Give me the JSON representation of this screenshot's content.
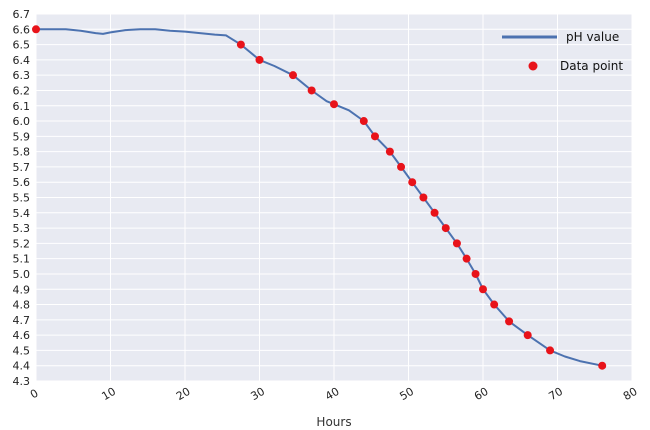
{
  "chart_data": {
    "type": "line",
    "title": "",
    "xlabel": "Hours",
    "ylabel": "",
    "xlim": [
      0,
      80
    ],
    "ylim": [
      4.3,
      6.7
    ],
    "xticks": [
      0,
      10,
      20,
      30,
      40,
      50,
      60,
      70,
      80
    ],
    "yticks": [
      4.3,
      4.4,
      4.5,
      4.6,
      4.7,
      4.8,
      4.9,
      5.0,
      5.1,
      5.2,
      5.3,
      5.4,
      5.5,
      5.6,
      5.7,
      5.8,
      5.9,
      6.0,
      6.1,
      6.2,
      6.3,
      6.4,
      6.5,
      6.6,
      6.7
    ],
    "grid": true,
    "legend_position": "top-right",
    "colors": {
      "background": "#e8eaf2",
      "grid": "#ffffff",
      "line": "#4c72b0",
      "points": "#e8131a"
    },
    "series": [
      {
        "name": "pH value",
        "kind": "line",
        "x": [
          0,
          2,
          4,
          6,
          8,
          9,
          10,
          12,
          14,
          16,
          18,
          20,
          22,
          24,
          25.5,
          26,
          27.5,
          30,
          32,
          34.5,
          37,
          39,
          40,
          42,
          44,
          45.5,
          47.5,
          49,
          50.5,
          52,
          53.5,
          55,
          56.5,
          57.8,
          59,
          60,
          61.5,
          63.5,
          66,
          69,
          71,
          73,
          76
        ],
        "y": [
          6.6,
          6.6,
          6.6,
          6.59,
          6.575,
          6.57,
          6.58,
          6.595,
          6.6,
          6.6,
          6.59,
          6.585,
          6.575,
          6.565,
          6.56,
          6.545,
          6.5,
          6.4,
          6.36,
          6.3,
          6.2,
          6.13,
          6.11,
          6.07,
          6.0,
          5.9,
          5.8,
          5.7,
          5.6,
          5.5,
          5.4,
          5.3,
          5.2,
          5.1,
          5.0,
          4.9,
          4.8,
          4.69,
          4.6,
          4.5,
          4.46,
          4.43,
          4.4
        ]
      },
      {
        "name": "Data point",
        "kind": "scatter",
        "x": [
          0,
          27.5,
          30,
          34.5,
          37,
          40,
          44,
          45.5,
          47.5,
          49,
          50.5,
          52,
          53.5,
          55,
          56.5,
          57.8,
          59,
          60,
          61.5,
          63.5,
          66,
          69,
          76
        ],
        "y": [
          6.6,
          6.5,
          6.4,
          6.3,
          6.2,
          6.11,
          6.0,
          5.9,
          5.8,
          5.7,
          5.6,
          5.5,
          5.4,
          5.3,
          5.2,
          5.1,
          5.0,
          4.9,
          4.8,
          4.69,
          4.6,
          4.5,
          4.4
        ]
      }
    ]
  }
}
